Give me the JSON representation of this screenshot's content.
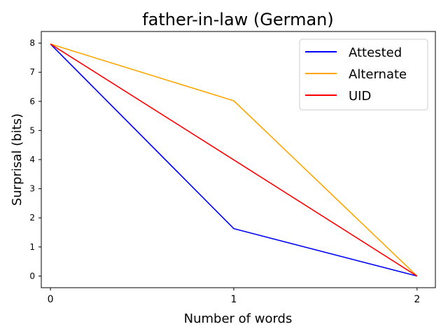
{
  "chart_data": {
    "type": "line",
    "title": "father-in-law (German)",
    "xlabel": "Number of words",
    "ylabel": "Surprisal (bits)",
    "x": [
      0,
      1,
      2
    ],
    "xticks": [
      "0",
      "1",
      "2"
    ],
    "yticks": [
      "0",
      "1",
      "2",
      "3",
      "4",
      "5",
      "6",
      "7",
      "8"
    ],
    "xlim": [
      -0.05,
      2.1
    ],
    "ylim": [
      -0.4,
      8.4
    ],
    "grid": false,
    "legend_position": "top-right",
    "series": [
      {
        "name": "Attested",
        "color": "#0000ff",
        "values": [
          7.97,
          1.63,
          0.0
        ]
      },
      {
        "name": "Alternate",
        "color": "#ffa500",
        "values": [
          7.97,
          6.02,
          0.0
        ]
      },
      {
        "name": "UID",
        "color": "#ff0000",
        "values": [
          7.97,
          3.99,
          0.0
        ]
      }
    ]
  }
}
